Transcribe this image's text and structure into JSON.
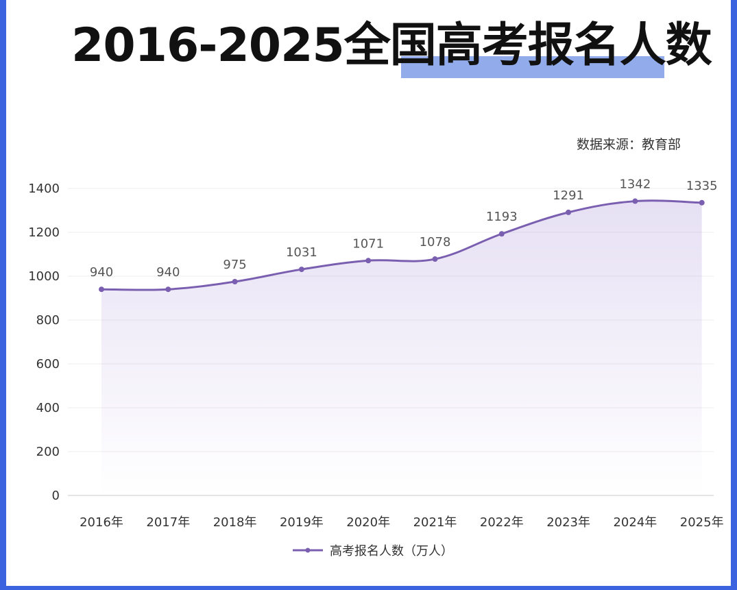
{
  "header": {
    "title": "2016-2025全国高考报名人数",
    "source": "数据来源：教育部"
  },
  "chart_data": {
    "type": "line",
    "title": "2016-2025全国高考报名人数",
    "categories": [
      "2016年",
      "2017年",
      "2018年",
      "2019年",
      "2020年",
      "2021年",
      "2022年",
      "2023年",
      "2024年",
      "2025年"
    ],
    "series": [
      {
        "name": "高考报名人数（万人）",
        "values": [
          940,
          940,
          975,
          1031,
          1071,
          1078,
          1193,
          1291,
          1342,
          1335
        ],
        "color": "#7a5fb0"
      }
    ],
    "yticks": [
      0,
      200,
      400,
      600,
      800,
      1000,
      1200,
      1400
    ],
    "ylim": [
      0,
      1400
    ],
    "grid": true,
    "smooth": true,
    "area_fill": true,
    "legend_position": "bottom"
  }
}
